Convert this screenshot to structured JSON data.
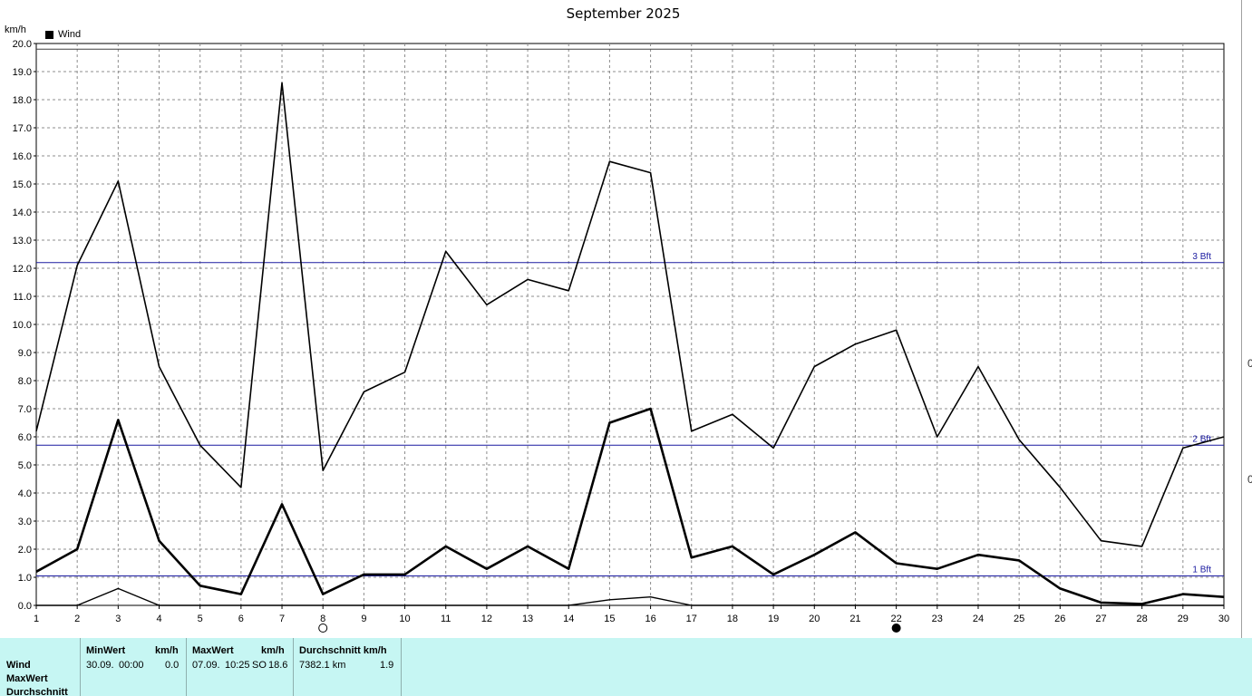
{
  "window": {
    "title": "September 2025"
  },
  "chart_data": {
    "type": "line",
    "title": "September 2025",
    "ylabel": "km/h",
    "xlabel": "",
    "xlim": [
      1,
      30
    ],
    "ylim": [
      0,
      20
    ],
    "y_ticks": [
      "0.0",
      "1.0",
      "2.0",
      "3.0",
      "4.0",
      "5.0",
      "6.0",
      "7.0",
      "8.0",
      "9.0",
      "10.0",
      "11.0",
      "12.0",
      "13.0",
      "14.0",
      "15.0",
      "16.0",
      "17.0",
      "18.0",
      "19.0",
      "20.0"
    ],
    "x_ticks": [
      "1",
      "2",
      "3",
      "4",
      "5",
      "6",
      "7",
      "8",
      "9",
      "10",
      "11",
      "12",
      "13",
      "14",
      "15",
      "16",
      "17",
      "18",
      "19",
      "20",
      "21",
      "22",
      "23",
      "24",
      "25",
      "26",
      "27",
      "28",
      "29",
      "30"
    ],
    "grid": true,
    "legend": {
      "position": "top-left",
      "entries": [
        "Wind"
      ]
    },
    "series": [
      {
        "name": "",
        "role": "max",
        "values": [
          6.2,
          12.1,
          15.1,
          8.5,
          5.7,
          4.2,
          18.6,
          4.8,
          7.6,
          8.3,
          12.6,
          10.7,
          11.6,
          11.2,
          15.8,
          15.4,
          6.2,
          6.8,
          5.6,
          8.5,
          9.3,
          9.8,
          6.0,
          8.5,
          5.9,
          4.2,
          2.3,
          2.1,
          5.6,
          6.0
        ]
      },
      {
        "name": "Wind",
        "role": "avg",
        "values": [
          1.2,
          2.0,
          6.6,
          2.3,
          0.7,
          0.4,
          3.6,
          0.4,
          1.1,
          1.1,
          2.1,
          1.3,
          2.1,
          1.3,
          6.5,
          7.0,
          1.7,
          2.1,
          1.1,
          1.8,
          2.6,
          1.5,
          1.3,
          1.8,
          1.6,
          0.6,
          0.1,
          0.05,
          0.4,
          0.3
        ]
      },
      {
        "name": "",
        "role": "min",
        "values": [
          0.0,
          0.0,
          0.6,
          0.0,
          0.0,
          0.0,
          0.0,
          0.0,
          0.0,
          0.0,
          0.0,
          0.0,
          0.0,
          0.0,
          0.2,
          0.3,
          0.0,
          0.0,
          0.0,
          0.0,
          0.0,
          0.0,
          0.0,
          0.0,
          0.0,
          0.0,
          0.0,
          0.0,
          0.0,
          0.0
        ]
      }
    ],
    "reference_lines": [
      {
        "value": 1.05,
        "label": "1 Bft",
        "color": "#1a1aa0"
      },
      {
        "value": 5.7,
        "label": "2 Bft",
        "color": "#1a1aa0"
      },
      {
        "value": 12.2,
        "label": "3 Bft",
        "color": "#1a1aa0"
      },
      {
        "value": 19.8,
        "label": "",
        "color": "#404040"
      }
    ],
    "moon_phases": [
      {
        "day": 8,
        "phase": "full"
      },
      {
        "day": 22,
        "phase": "new"
      }
    ]
  },
  "right_edge": {
    "upper": "0",
    "lower": "0"
  },
  "footer": {
    "rows": [
      "Wind",
      "MaxWert",
      "Durchschnitt"
    ],
    "min": {
      "header": "MinWert",
      "unit": "km/h",
      "date": "30.09.",
      "time": "00:00",
      "value": "0.0"
    },
    "max": {
      "header": "MaxWert",
      "unit": "km/h",
      "date": "07.09.",
      "time": "10:25",
      "dir": "SO",
      "value": "18.6"
    },
    "avg": {
      "header": "Durchschnitt km/h",
      "distance": "7382.1 km",
      "value": "1.9"
    }
  }
}
